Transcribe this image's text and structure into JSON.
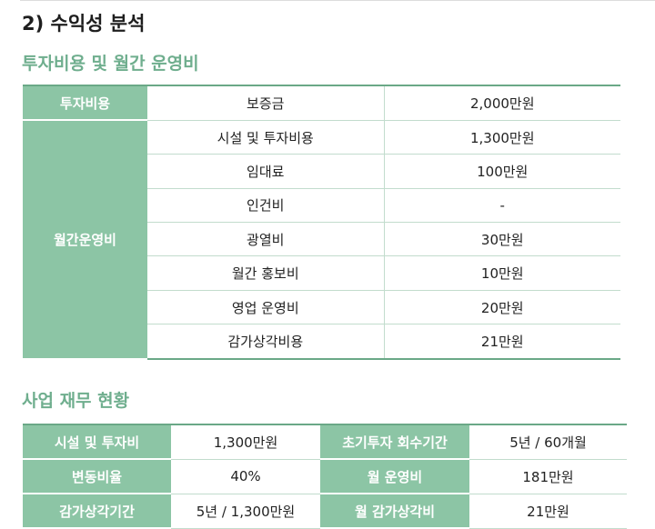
{
  "section_title": "2) 수익성 분석",
  "investment_table": {
    "title": "투자비용 및 월간 운영비",
    "investment": {
      "category": "투자비용",
      "rows": [
        {
          "item": "보증금",
          "amount": "2,000만원"
        }
      ]
    },
    "monthly": {
      "category": "월간운영비",
      "rows": [
        {
          "item": "시설 및 투자비용",
          "amount": "1,300만원"
        },
        {
          "item": "임대료",
          "amount": "100만원"
        },
        {
          "item": "인건비",
          "amount": "-"
        },
        {
          "item": "광열비",
          "amount": "30만원"
        },
        {
          "item": "월간 홍보비",
          "amount": "10만원"
        },
        {
          "item": "영업 운영비",
          "amount": "20만원"
        },
        {
          "item": "감가상각비용",
          "amount": "21만원"
        }
      ]
    }
  },
  "finance_table": {
    "title": "사업 재무 현황",
    "rows": [
      [
        {
          "label": "시설 및 투자비",
          "value": "1,300만원"
        },
        {
          "label": "초기투자 회수기간",
          "value": "5년 / 60개월"
        }
      ],
      [
        {
          "label": "변동비율",
          "value": "40%"
        },
        {
          "label": "월 운영비",
          "value": "181만원"
        }
      ],
      [
        {
          "label": "감가상각기간",
          "value": "5년 / 1,300만원"
        },
        {
          "label": "월 감가상각비",
          "value": "21만원"
        }
      ]
    ]
  }
}
